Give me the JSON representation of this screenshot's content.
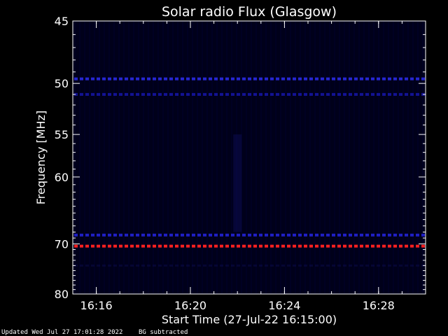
{
  "chart_data": {
    "type": "heatmap",
    "title": "Solar radio Flux (Glasgow)",
    "xlabel": "Start Time (27-Jul-22 16:15:00)",
    "ylabel": "Frequency [MHz]",
    "xlim": [
      "16:15:00",
      "16:30:00"
    ],
    "ylim": [
      45,
      80
    ],
    "y_scale": "reciprocal",
    "x_ticks": [
      "16:16",
      "16:20",
      "16:24",
      "16:28"
    ],
    "y_ticks": [
      45,
      50,
      55,
      60,
      70,
      80
    ],
    "background_color": "#00001a",
    "features": [
      {
        "label": "interference band",
        "frequency_mhz": 49.6,
        "color": "#3030ff",
        "intensity": 0.8
      },
      {
        "label": "interference band",
        "frequency_mhz": 51.0,
        "color": "#1a1ac8",
        "intensity": 0.7
      },
      {
        "label": "interference band",
        "frequency_mhz": 68.5,
        "color": "#2a2aff",
        "intensity": 0.75
      },
      {
        "label": "interference band",
        "frequency_mhz": 70.4,
        "color": "#ff2020",
        "intensity": 1.0
      },
      {
        "label": "weak band",
        "frequency_mhz": 74.0,
        "color": "#101060",
        "intensity": 0.35
      },
      {
        "label": "emission burst",
        "time": "16:22",
        "frequency_range_mhz": [
          55,
          68
        ],
        "color": "#101070",
        "intensity": 0.35
      }
    ]
  },
  "footer": {
    "updated": "Updated Wed Jul 27 17:01:28 2022",
    "note": "BG subtracted"
  }
}
